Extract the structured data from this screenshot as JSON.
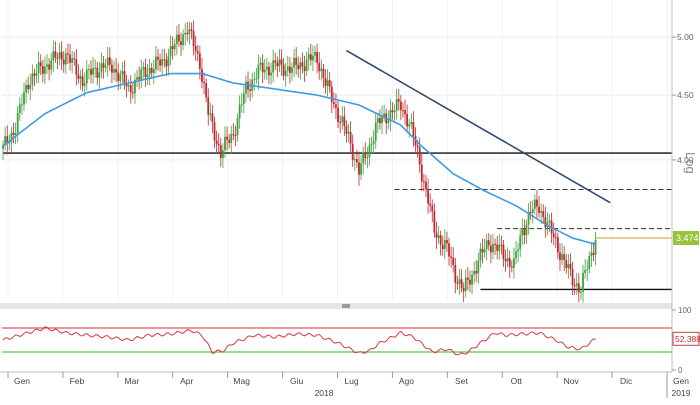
{
  "chart_data": [
    {
      "type": "candlestick",
      "scale": "log",
      "axis_label": "Log",
      "y_ticks": [
        "5.00",
        "4.50",
        "4.00"
      ],
      "ylim": [
        3.1,
        5.35
      ],
      "x_months": [
        "Gen",
        "Feb",
        "Mar",
        "Apr",
        "Mag",
        "Giu",
        "Lug",
        "Ago",
        "Set",
        "Ott",
        "Nov",
        "Dic",
        "Gen"
      ],
      "x_years": [
        "2018",
        "2019"
      ],
      "last_price_label": "3.474",
      "close_anchors": [
        [
          0,
          4.08
        ],
        [
          6,
          4.25
        ],
        [
          12,
          4.62
        ],
        [
          22,
          4.78
        ],
        [
          30,
          4.85
        ],
        [
          38,
          4.62
        ],
        [
          44,
          4.72
        ],
        [
          52,
          4.75
        ],
        [
          60,
          4.55
        ],
        [
          68,
          4.7
        ],
        [
          76,
          4.78
        ],
        [
          82,
          4.92
        ],
        [
          88,
          5.08
        ],
        [
          94,
          4.78
        ],
        [
          98,
          4.35
        ],
        [
          104,
          4.05
        ],
        [
          110,
          4.2
        ],
        [
          116,
          4.55
        ],
        [
          122,
          4.7
        ],
        [
          130,
          4.75
        ],
        [
          138,
          4.72
        ],
        [
          144,
          4.78
        ],
        [
          150,
          4.82
        ],
        [
          154,
          4.6
        ],
        [
          160,
          4.35
        ],
        [
          166,
          4.12
        ],
        [
          170,
          3.92
        ],
        [
          174,
          4.05
        ],
        [
          178,
          4.25
        ],
        [
          184,
          4.35
        ],
        [
          190,
          4.42
        ],
        [
          194,
          4.28
        ],
        [
          198,
          4.05
        ],
        [
          202,
          3.78
        ],
        [
          206,
          3.52
        ],
        [
          212,
          3.4
        ],
        [
          216,
          3.25
        ],
        [
          220,
          3.15
        ],
        [
          226,
          3.3
        ],
        [
          232,
          3.45
        ],
        [
          238,
          3.38
        ],
        [
          244,
          3.3
        ],
        [
          248,
          3.52
        ],
        [
          252,
          3.64
        ],
        [
          256,
          3.68
        ],
        [
          260,
          3.55
        ],
        [
          264,
          3.45
        ],
        [
          268,
          3.32
        ],
        [
          272,
          3.22
        ],
        [
          276,
          3.16
        ],
        [
          280,
          3.34
        ],
        [
          283,
          3.47
        ]
      ],
      "ma_anchors": [
        [
          0,
          4.1
        ],
        [
          20,
          4.35
        ],
        [
          40,
          4.52
        ],
        [
          60,
          4.6
        ],
        [
          80,
          4.68
        ],
        [
          95,
          4.68
        ],
        [
          110,
          4.6
        ],
        [
          130,
          4.55
        ],
        [
          150,
          4.5
        ],
        [
          170,
          4.42
        ],
        [
          190,
          4.26
        ],
        [
          200,
          4.1
        ],
        [
          215,
          3.9
        ],
        [
          230,
          3.78
        ],
        [
          245,
          3.68
        ],
        [
          260,
          3.55
        ],
        [
          272,
          3.47
        ],
        [
          283,
          3.43
        ]
      ],
      "trendline": {
        "from": [
          164,
          4.88
        ],
        "to": [
          290,
          3.7
        ]
      },
      "horizontal_levels": [
        {
          "value": 4.05,
          "style": "solid",
          "from_day": 0
        },
        {
          "value": 3.79,
          "style": "dashed",
          "from_day": 187
        },
        {
          "value": 3.53,
          "style": "dashed",
          "from_day": 236
        },
        {
          "value": 3.16,
          "style": "solid",
          "from_day": 228
        }
      ],
      "colors": {
        "up": "#3ca33c",
        "down": "#c0282d",
        "ma": "#3d9be0",
        "trendline": "#2e4a6b"
      }
    },
    {
      "type": "line",
      "name": "RSI",
      "ylim": [
        0,
        100
      ],
      "y_ticks": [
        "100",
        "0"
      ],
      "levels": [
        70,
        30
      ],
      "last_value_label": "52.3887",
      "anchors": [
        [
          0,
          50
        ],
        [
          10,
          60
        ],
        [
          20,
          70
        ],
        [
          30,
          62
        ],
        [
          40,
          58
        ],
        [
          50,
          55
        ],
        [
          60,
          50
        ],
        [
          70,
          58
        ],
        [
          80,
          60
        ],
        [
          90,
          66
        ],
        [
          95,
          58
        ],
        [
          100,
          30
        ],
        [
          105,
          32
        ],
        [
          110,
          45
        ],
        [
          120,
          58
        ],
        [
          130,
          55
        ],
        [
          140,
          60
        ],
        [
          150,
          58
        ],
        [
          160,
          45
        ],
        [
          170,
          28
        ],
        [
          175,
          32
        ],
        [
          180,
          45
        ],
        [
          190,
          62
        ],
        [
          196,
          55
        ],
        [
          205,
          30
        ],
        [
          212,
          35
        ],
        [
          218,
          25
        ],
        [
          222,
          30
        ],
        [
          228,
          45
        ],
        [
          235,
          62
        ],
        [
          240,
          58
        ],
        [
          248,
          60
        ],
        [
          256,
          62
        ],
        [
          264,
          50
        ],
        [
          270,
          38
        ],
        [
          276,
          35
        ],
        [
          283,
          52
        ]
      ],
      "colors": {
        "line": "#d8384a",
        "overbought": "#d83232",
        "oversold": "#33b533"
      }
    }
  ]
}
